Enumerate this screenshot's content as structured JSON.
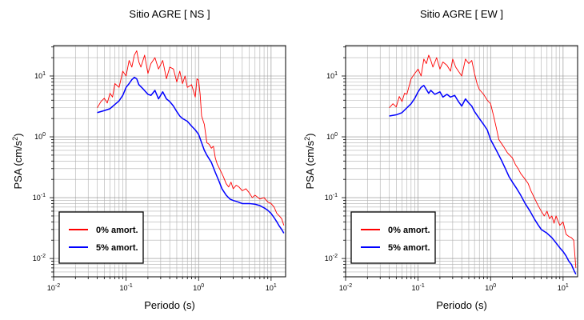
{
  "chart_data": [
    {
      "type": "line",
      "title": "Sitio AGRE [ NS ]",
      "xlabel": "Periodo (s)",
      "ylabel": "PSA (cm/s2)",
      "x_scale": "log",
      "y_scale": "log",
      "xlim": [
        0.01,
        15.85
      ],
      "ylim": [
        0.005,
        31.6
      ],
      "grid": true,
      "legend_position": "bottom-left",
      "x_ticks": [
        0.01,
        0.1,
        1,
        10
      ],
      "y_ticks": [
        0.01,
        0.1,
        1,
        10
      ],
      "x_tick_labels": [
        {
          "base": "10",
          "exp": "-2"
        },
        {
          "base": "10",
          "exp": "-1"
        },
        {
          "base": "10",
          "exp": "0"
        },
        {
          "base": "10",
          "exp": "1"
        }
      ],
      "y_tick_labels": [
        {
          "base": "10",
          "exp": "-2"
        },
        {
          "base": "10",
          "exp": "-1"
        },
        {
          "base": "10",
          "exp": "0"
        },
        {
          "base": "10",
          "exp": "1"
        }
      ],
      "series": [
        {
          "name": "0% amort.",
          "color": "#ff0000",
          "points": [
            [
              0.04,
              3.0
            ],
            [
              0.045,
              3.8
            ],
            [
              0.05,
              4.3
            ],
            [
              0.055,
              3.6
            ],
            [
              0.06,
              5.2
            ],
            [
              0.065,
              4.5
            ],
            [
              0.07,
              7.5
            ],
            [
              0.08,
              6.5
            ],
            [
              0.09,
              12
            ],
            [
              0.1,
              10
            ],
            [
              0.11,
              18
            ],
            [
              0.12,
              14
            ],
            [
              0.13,
              22
            ],
            [
              0.14,
              26
            ],
            [
              0.15,
              17
            ],
            [
              0.16,
              14
            ],
            [
              0.18,
              22
            ],
            [
              0.2,
              11
            ],
            [
              0.22,
              16
            ],
            [
              0.25,
              20
            ],
            [
              0.28,
              13
            ],
            [
              0.32,
              18
            ],
            [
              0.36,
              9
            ],
            [
              0.4,
              14
            ],
            [
              0.45,
              13
            ],
            [
              0.5,
              8
            ],
            [
              0.55,
              12
            ],
            [
              0.6,
              7.5
            ],
            [
              0.65,
              10
            ],
            [
              0.7,
              6.5
            ],
            [
              0.8,
              7.2
            ],
            [
              0.9,
              4.5
            ],
            [
              0.95,
              9
            ],
            [
              1.0,
              8.5
            ],
            [
              1.05,
              5
            ],
            [
              1.1,
              2.2
            ],
            [
              1.2,
              1.6
            ],
            [
              1.3,
              0.8
            ],
            [
              1.4,
              0.75
            ],
            [
              1.5,
              0.65
            ],
            [
              1.6,
              0.7
            ],
            [
              1.7,
              0.45
            ],
            [
              1.8,
              0.36
            ],
            [
              2.0,
              0.28
            ],
            [
              2.2,
              0.22
            ],
            [
              2.4,
              0.17
            ],
            [
              2.6,
              0.15
            ],
            [
              2.8,
              0.18
            ],
            [
              3.0,
              0.14
            ],
            [
              3.3,
              0.16
            ],
            [
              3.6,
              0.15
            ],
            [
              4.0,
              0.13
            ],
            [
              4.5,
              0.14
            ],
            [
              5.0,
              0.12
            ],
            [
              5.5,
              0.1
            ],
            [
              6.0,
              0.11
            ],
            [
              7.0,
              0.095
            ],
            [
              8.0,
              0.1
            ],
            [
              9.0,
              0.085
            ],
            [
              10.0,
              0.08
            ],
            [
              11.0,
              0.07
            ],
            [
              12.0,
              0.055
            ],
            [
              13.0,
              0.05
            ],
            [
              14.0,
              0.045
            ],
            [
              15.0,
              0.035
            ]
          ]
        },
        {
          "name": "5% amort.",
          "color": "#0000ff",
          "points": [
            [
              0.04,
              2.5
            ],
            [
              0.05,
              2.7
            ],
            [
              0.06,
              2.9
            ],
            [
              0.07,
              3.4
            ],
            [
              0.08,
              3.9
            ],
            [
              0.09,
              4.8
            ],
            [
              0.1,
              6.5
            ],
            [
              0.11,
              7.5
            ],
            [
              0.12,
              8.7
            ],
            [
              0.13,
              9.5
            ],
            [
              0.14,
              9.0
            ],
            [
              0.15,
              7.2
            ],
            [
              0.17,
              6.2
            ],
            [
              0.2,
              5.0
            ],
            [
              0.22,
              4.8
            ],
            [
              0.25,
              5.8
            ],
            [
              0.28,
              4.2
            ],
            [
              0.32,
              5.5
            ],
            [
              0.36,
              4.2
            ],
            [
              0.4,
              3.8
            ],
            [
              0.45,
              3.2
            ],
            [
              0.5,
              2.6
            ],
            [
              0.55,
              2.2
            ],
            [
              0.6,
              2.0
            ],
            [
              0.7,
              1.8
            ],
            [
              0.8,
              1.5
            ],
            [
              0.9,
              1.3
            ],
            [
              1.0,
              1.1
            ],
            [
              1.1,
              0.8
            ],
            [
              1.2,
              0.6
            ],
            [
              1.3,
              0.5
            ],
            [
              1.5,
              0.38
            ],
            [
              1.7,
              0.26
            ],
            [
              1.9,
              0.19
            ],
            [
              2.1,
              0.14
            ],
            [
              2.4,
              0.11
            ],
            [
              2.7,
              0.095
            ],
            [
              3.0,
              0.09
            ],
            [
              3.5,
              0.085
            ],
            [
              4.0,
              0.08
            ],
            [
              5.0,
              0.08
            ],
            [
              6.0,
              0.078
            ],
            [
              7.0,
              0.074
            ],
            [
              8.0,
              0.068
            ],
            [
              9.0,
              0.062
            ],
            [
              10.0,
              0.055
            ],
            [
              11.0,
              0.047
            ],
            [
              12.0,
              0.04
            ],
            [
              13.0,
              0.034
            ],
            [
              14.0,
              0.03
            ],
            [
              15.0,
              0.026
            ]
          ]
        }
      ]
    },
    {
      "type": "line",
      "title": "Sitio AGRE [ EW ]",
      "xlabel": "Periodo (s)",
      "ylabel": "PSA (cm/s2)",
      "x_scale": "log",
      "y_scale": "log",
      "xlim": [
        0.01,
        15.85
      ],
      "ylim": [
        0.005,
        31.6
      ],
      "grid": true,
      "legend_position": "bottom-left",
      "x_ticks": [
        0.01,
        0.1,
        1,
        10
      ],
      "y_ticks": [
        0.01,
        0.1,
        1,
        10
      ],
      "x_tick_labels": [
        {
          "base": "10",
          "exp": "-2"
        },
        {
          "base": "10",
          "exp": "-1"
        },
        {
          "base": "10",
          "exp": "0"
        },
        {
          "base": "10",
          "exp": "1"
        }
      ],
      "y_tick_labels": [
        {
          "base": "10",
          "exp": "-2"
        },
        {
          "base": "10",
          "exp": "-1"
        },
        {
          "base": "10",
          "exp": "0"
        },
        {
          "base": "10",
          "exp": "1"
        }
      ],
      "series": [
        {
          "name": "0% amort.",
          "color": "#ff0000",
          "points": [
            [
              0.04,
              3.0
            ],
            [
              0.045,
              3.5
            ],
            [
              0.05,
              3.1
            ],
            [
              0.055,
              4.6
            ],
            [
              0.06,
              3.8
            ],
            [
              0.065,
              5.2
            ],
            [
              0.07,
              5.0
            ],
            [
              0.08,
              9.0
            ],
            [
              0.09,
              11
            ],
            [
              0.1,
              13
            ],
            [
              0.11,
              10
            ],
            [
              0.12,
              19
            ],
            [
              0.13,
              16
            ],
            [
              0.14,
              22
            ],
            [
              0.15,
              18
            ],
            [
              0.16,
              14
            ],
            [
              0.18,
              20
            ],
            [
              0.2,
              13
            ],
            [
              0.22,
              17
            ],
            [
              0.25,
              15
            ],
            [
              0.28,
              12
            ],
            [
              0.3,
              19
            ],
            [
              0.33,
              14
            ],
            [
              0.36,
              12
            ],
            [
              0.4,
              10
            ],
            [
              0.45,
              19
            ],
            [
              0.5,
              16
            ],
            [
              0.55,
              18
            ],
            [
              0.6,
              11
            ],
            [
              0.65,
              7.5
            ],
            [
              0.7,
              6.0
            ],
            [
              0.8,
              5.0
            ],
            [
              0.9,
              4.0
            ],
            [
              1.0,
              3.5
            ],
            [
              1.1,
              2.2
            ],
            [
              1.2,
              1.4
            ],
            [
              1.3,
              0.9
            ],
            [
              1.5,
              0.7
            ],
            [
              1.7,
              0.55
            ],
            [
              2.0,
              0.45
            ],
            [
              2.2,
              0.35
            ],
            [
              2.4,
              0.3
            ],
            [
              2.6,
              0.25
            ],
            [
              3.0,
              0.2
            ],
            [
              3.3,
              0.17
            ],
            [
              3.6,
              0.13
            ],
            [
              4.0,
              0.1
            ],
            [
              4.5,
              0.075
            ],
            [
              5.0,
              0.06
            ],
            [
              5.5,
              0.05
            ],
            [
              6.0,
              0.06
            ],
            [
              6.5,
              0.045
            ],
            [
              7.0,
              0.05
            ],
            [
              7.5,
              0.038
            ],
            [
              8.0,
              0.05
            ],
            [
              9.0,
              0.035
            ],
            [
              10.0,
              0.04
            ],
            [
              11.0,
              0.025
            ],
            [
              12.0,
              0.023
            ],
            [
              13.0,
              0.022
            ],
            [
              14.0,
              0.02
            ],
            [
              15.0,
              0.007
            ]
          ]
        },
        {
          "name": "5% amort.",
          "color": "#0000ff",
          "points": [
            [
              0.04,
              2.2
            ],
            [
              0.05,
              2.3
            ],
            [
              0.06,
              2.5
            ],
            [
              0.07,
              3.0
            ],
            [
              0.08,
              3.5
            ],
            [
              0.09,
              4.3
            ],
            [
              0.1,
              5.5
            ],
            [
              0.11,
              6.5
            ],
            [
              0.12,
              7.0
            ],
            [
              0.13,
              6.0
            ],
            [
              0.14,
              5.2
            ],
            [
              0.15,
              5.8
            ],
            [
              0.17,
              5.0
            ],
            [
              0.2,
              5.5
            ],
            [
              0.22,
              4.5
            ],
            [
              0.25,
              5.0
            ],
            [
              0.28,
              4.5
            ],
            [
              0.32,
              4.8
            ],
            [
              0.36,
              3.8
            ],
            [
              0.4,
              3.2
            ],
            [
              0.45,
              4.2
            ],
            [
              0.5,
              3.6
            ],
            [
              0.55,
              3.2
            ],
            [
              0.6,
              2.6
            ],
            [
              0.7,
              2.0
            ],
            [
              0.8,
              1.6
            ],
            [
              0.9,
              1.3
            ],
            [
              1.0,
              0.9
            ],
            [
              1.2,
              0.6
            ],
            [
              1.4,
              0.42
            ],
            [
              1.6,
              0.3
            ],
            [
              1.8,
              0.22
            ],
            [
              2.0,
              0.18
            ],
            [
              2.3,
              0.14
            ],
            [
              2.6,
              0.11
            ],
            [
              3.0,
              0.08
            ],
            [
              3.5,
              0.06
            ],
            [
              4.0,
              0.045
            ],
            [
              4.5,
              0.036
            ],
            [
              5.0,
              0.03
            ],
            [
              6.0,
              0.026
            ],
            [
              7.0,
              0.022
            ],
            [
              8.0,
              0.018
            ],
            [
              9.0,
              0.015
            ],
            [
              10.0,
              0.013
            ],
            [
              11.0,
              0.011
            ],
            [
              12.0,
              0.009
            ],
            [
              13.0,
              0.008
            ],
            [
              14.0,
              0.0065
            ],
            [
              15.0,
              0.0055
            ]
          ]
        }
      ]
    }
  ]
}
